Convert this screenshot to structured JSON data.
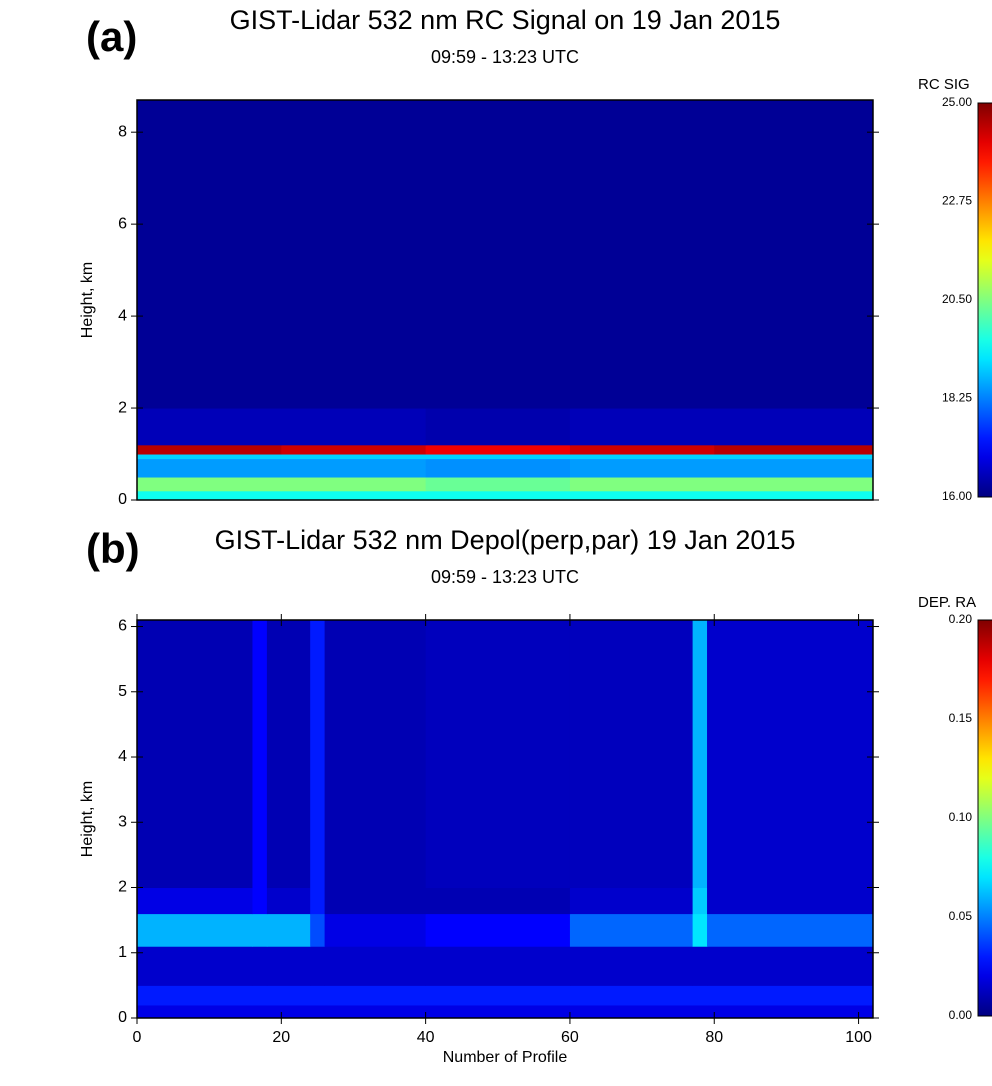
{
  "chart_data": [
    {
      "type": "heatmap",
      "panel_label": "(a)",
      "title": "GIST-Lidar 532 nm RC Signal on 19 Jan 2015",
      "subtitle": "09:59 - 13:23 UTC",
      "ylabel": "Height, km",
      "colorbar_label": "RC SIG",
      "colormap": "jet",
      "xlim": [
        0,
        102
      ],
      "ylim": [
        0,
        8.7
      ],
      "yticks": [
        0,
        2,
        4,
        6,
        8
      ],
      "zlim": [
        16,
        25
      ],
      "zticks": [
        {
          "value": 16,
          "label": "16.00"
        },
        {
          "value": 18.25,
          "label": "18.25"
        },
        {
          "value": 20.5,
          "label": "20.50"
        },
        {
          "value": 22.75,
          "label": "22.75"
        },
        {
          "value": 25,
          "label": "25.00"
        }
      ],
      "x_edges": [
        0,
        20,
        40,
        60,
        80,
        102
      ],
      "y_edges": [
        0,
        0.2,
        0.5,
        0.9,
        1.0,
        1.2,
        2,
        8.7
      ],
      "z": [
        [
          19.5,
          19.5,
          19.5,
          19.5,
          19.5
        ],
        [
          20.5,
          20.5,
          20.3,
          20.5,
          20.5
        ],
        [
          18.5,
          18.5,
          18.4,
          18.5,
          18.5
        ],
        [
          19,
          19,
          19,
          19,
          19
        ],
        [
          24.5,
          24.3,
          24,
          24.3,
          24.5
        ],
        [
          16.5,
          16.5,
          16.4,
          16.5,
          16.5
        ],
        [
          16.2,
          16.2,
          16.2,
          16.2,
          16.2
        ]
      ]
    },
    {
      "type": "heatmap",
      "panel_label": "(b)",
      "title": "GIST-Lidar 532 nm Depol(perp,par) 19 Jan 2015",
      "subtitle": "09:59 - 13:23 UTC",
      "xlabel": "Number of Profile",
      "ylabel": "Height, km",
      "colorbar_label": "DEP. RA",
      "colormap": "jet",
      "xlim": [
        0,
        102
      ],
      "ylim": [
        0,
        6.1
      ],
      "xticks": [
        0,
        20,
        40,
        60,
        80,
        100
      ],
      "yticks": [
        0,
        1,
        2,
        3,
        4,
        5,
        6
      ],
      "zlim": [
        0,
        0.2
      ],
      "zticks": [
        {
          "value": 0,
          "label": "0.00"
        },
        {
          "value": 0.05,
          "label": "0.05"
        },
        {
          "value": 0.1,
          "label": "0.10"
        },
        {
          "value": 0.15,
          "label": "0.15"
        },
        {
          "value": 0.2,
          "label": "0.20"
        }
      ],
      "x_edges": [
        0,
        16,
        18,
        24,
        26,
        40,
        60,
        77,
        79,
        102
      ],
      "y_edges": [
        0,
        0.2,
        0.5,
        1.1,
        1.6,
        2,
        6.1
      ],
      "z": [
        [
          0.02,
          0.02,
          0.02,
          0.02,
          0.02,
          0.02,
          0.02,
          0.02,
          0.02
        ],
        [
          0.03,
          0.03,
          0.03,
          0.03,
          0.03,
          0.03,
          0.03,
          0.03,
          0.03
        ],
        [
          0.015,
          0.015,
          0.015,
          0.015,
          0.015,
          0.015,
          0.015,
          0.015,
          0.015
        ],
        [
          0.06,
          0.06,
          0.06,
          0.04,
          0.02,
          0.025,
          0.045,
          0.07,
          0.045
        ],
        [
          0.02,
          0.025,
          0.015,
          0.03,
          0.01,
          0.01,
          0.015,
          0.065,
          0.015
        ],
        [
          0.01,
          0.025,
          0.01,
          0.03,
          0.01,
          0.012,
          0.012,
          0.06,
          0.015
        ]
      ]
    }
  ]
}
